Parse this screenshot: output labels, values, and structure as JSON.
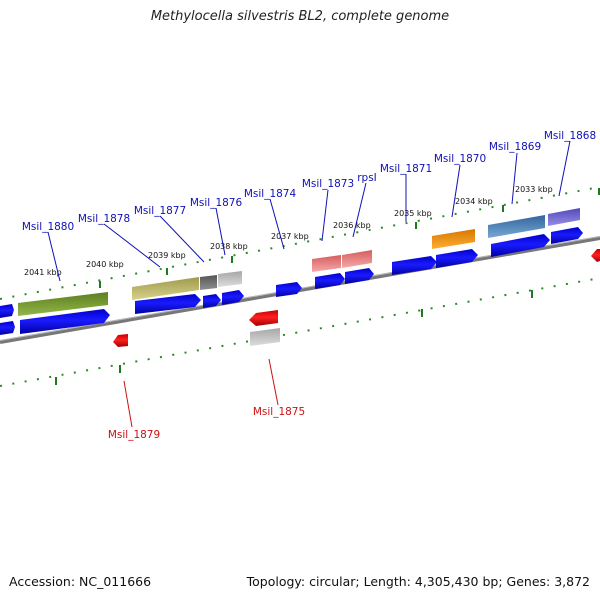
{
  "title": "Methylocella silvestris BL2, complete genome",
  "footer": {
    "accession": "Accession: NC_011666",
    "summary": "Topology: circular; Length: 4,305,430 bp; Genes: 3,872"
  },
  "colors": {
    "forward_gene": "#0000ee",
    "reverse_gene": "#ee0000",
    "forward_label": "#1010b8",
    "reverse_label": "#cc1111",
    "backbone": "#808080",
    "ruler_dot": "#2a8a2a"
  },
  "ticks": [
    {
      "kbp": 2033,
      "label": "2033 kbp"
    },
    {
      "kbp": 2034,
      "label": "2034 kbp"
    },
    {
      "kbp": 2035,
      "label": "2035 kbp"
    },
    {
      "kbp": 2036,
      "label": "2036 kbp"
    },
    {
      "kbp": 2037,
      "label": "2037 kbp"
    },
    {
      "kbp": 2038,
      "label": "2038 kbp"
    },
    {
      "kbp": 2039,
      "label": "2039 kbp"
    },
    {
      "kbp": 2040,
      "label": "2040 kbp"
    },
    {
      "kbp": 2041,
      "label": "2041 kbp"
    }
  ],
  "genes": [
    {
      "name": "Msil_1868",
      "strand": "forward"
    },
    {
      "name": "Msil_1869",
      "strand": "forward"
    },
    {
      "name": "Msil_1870",
      "strand": "forward"
    },
    {
      "name": "Msil_1871",
      "strand": "forward"
    },
    {
      "name": "rpsI",
      "strand": "forward"
    },
    {
      "name": "Msil_1873",
      "strand": "forward"
    },
    {
      "name": "Msil_1874",
      "strand": "forward"
    },
    {
      "name": "Msil_1875",
      "strand": "reverse"
    },
    {
      "name": "Msil_1876",
      "strand": "forward"
    },
    {
      "name": "Msil_1877",
      "strand": "forward"
    },
    {
      "name": "Msil_1878",
      "strand": "forward"
    },
    {
      "name": "Msil_1879",
      "strand": "reverse"
    },
    {
      "name": "Msil_1880",
      "strand": "forward"
    }
  ]
}
